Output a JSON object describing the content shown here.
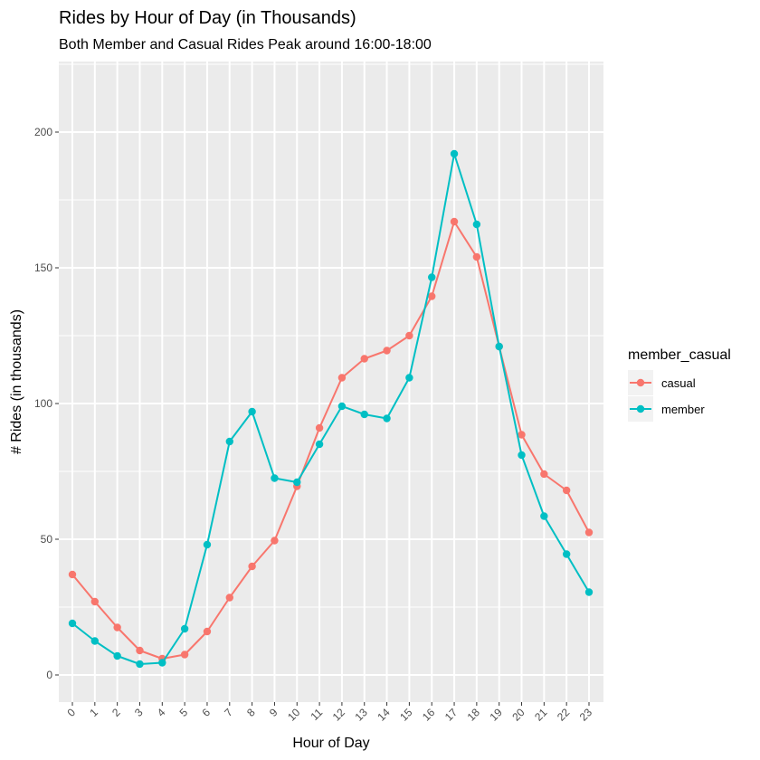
{
  "chart_data": {
    "type": "line",
    "title": "Rides by Hour of Day (in Thousands)",
    "subtitle": "Both Member and Casual Rides Peak around 16:00-18:00",
    "xlabel": "Hour of Day",
    "ylabel": "# Rides (in thousands)",
    "ylim": [
      -10,
      226
    ],
    "y_ticks": [
      0,
      50,
      100,
      150,
      200
    ],
    "categories": [
      "0",
      "1",
      "2",
      "3",
      "4",
      "5",
      "6",
      "7",
      "8",
      "9",
      "10",
      "11",
      "12",
      "13",
      "14",
      "15",
      "16",
      "17",
      "18",
      "19",
      "20",
      "21",
      "22",
      "23"
    ],
    "grid": true,
    "legend": {
      "title": "member_casual",
      "position": "right"
    },
    "series": [
      {
        "name": "casual",
        "color": "#F8766D",
        "values": [
          37,
          27,
          17.5,
          9,
          6,
          7.5,
          16,
          28.5,
          40,
          49.5,
          69.5,
          91,
          109.5,
          116.5,
          119.5,
          125,
          139.5,
          167,
          154,
          121,
          88.5,
          74,
          68,
          52.5
        ]
      },
      {
        "name": "member",
        "color": "#00BFC4",
        "values": [
          19,
          12.5,
          7,
          4,
          4.5,
          17,
          48,
          86,
          97,
          72.5,
          71,
          85,
          99,
          96,
          94.5,
          109.5,
          146.5,
          192,
          166,
          121,
          81,
          58.5,
          44.5,
          30.5
        ]
      }
    ]
  }
}
